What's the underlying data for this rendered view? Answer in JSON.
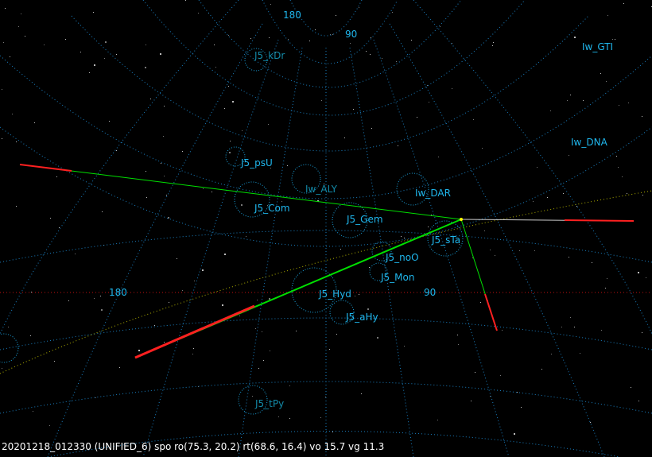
{
  "status_line": "20201218_012330 (UNIFIED_6) spo ro(75.3, 20.2) rt(68.6, 16.4) vo 15.7 vg 11.3",
  "grid_labels": {
    "top_180": "180",
    "top_90": "90",
    "left_180": "180",
    "mid_90": "90"
  },
  "radiants": [
    {
      "name": "J5_kDr",
      "dim": true
    },
    {
      "name": "Iw_GTI",
      "dim": false
    },
    {
      "name": "Iw_DNA",
      "dim": false
    },
    {
      "name": "J5_psU",
      "dim": false
    },
    {
      "name": "Iw_ALY",
      "dim": true
    },
    {
      "name": "Iw_DAR",
      "dim": false
    },
    {
      "name": "J5_Com",
      "dim": false
    },
    {
      "name": "J5_Gem",
      "dim": false
    },
    {
      "name": "J5_sTa",
      "dim": false
    },
    {
      "name": "J5_noO",
      "dim": false
    },
    {
      "name": "J5_Mon",
      "dim": false
    },
    {
      "name": "J5_Hyd",
      "dim": false
    },
    {
      "name": "J5_aHy",
      "dim": false
    },
    {
      "name": "J5_tPy",
      "dim": true
    }
  ],
  "colors": {
    "grid": "#1a7fc0",
    "label": "#1fb6ec",
    "meteor": "#00e000",
    "meteor_end": "#ff2020",
    "equator": "#c01010",
    "ecliptic": "#b0b000"
  }
}
